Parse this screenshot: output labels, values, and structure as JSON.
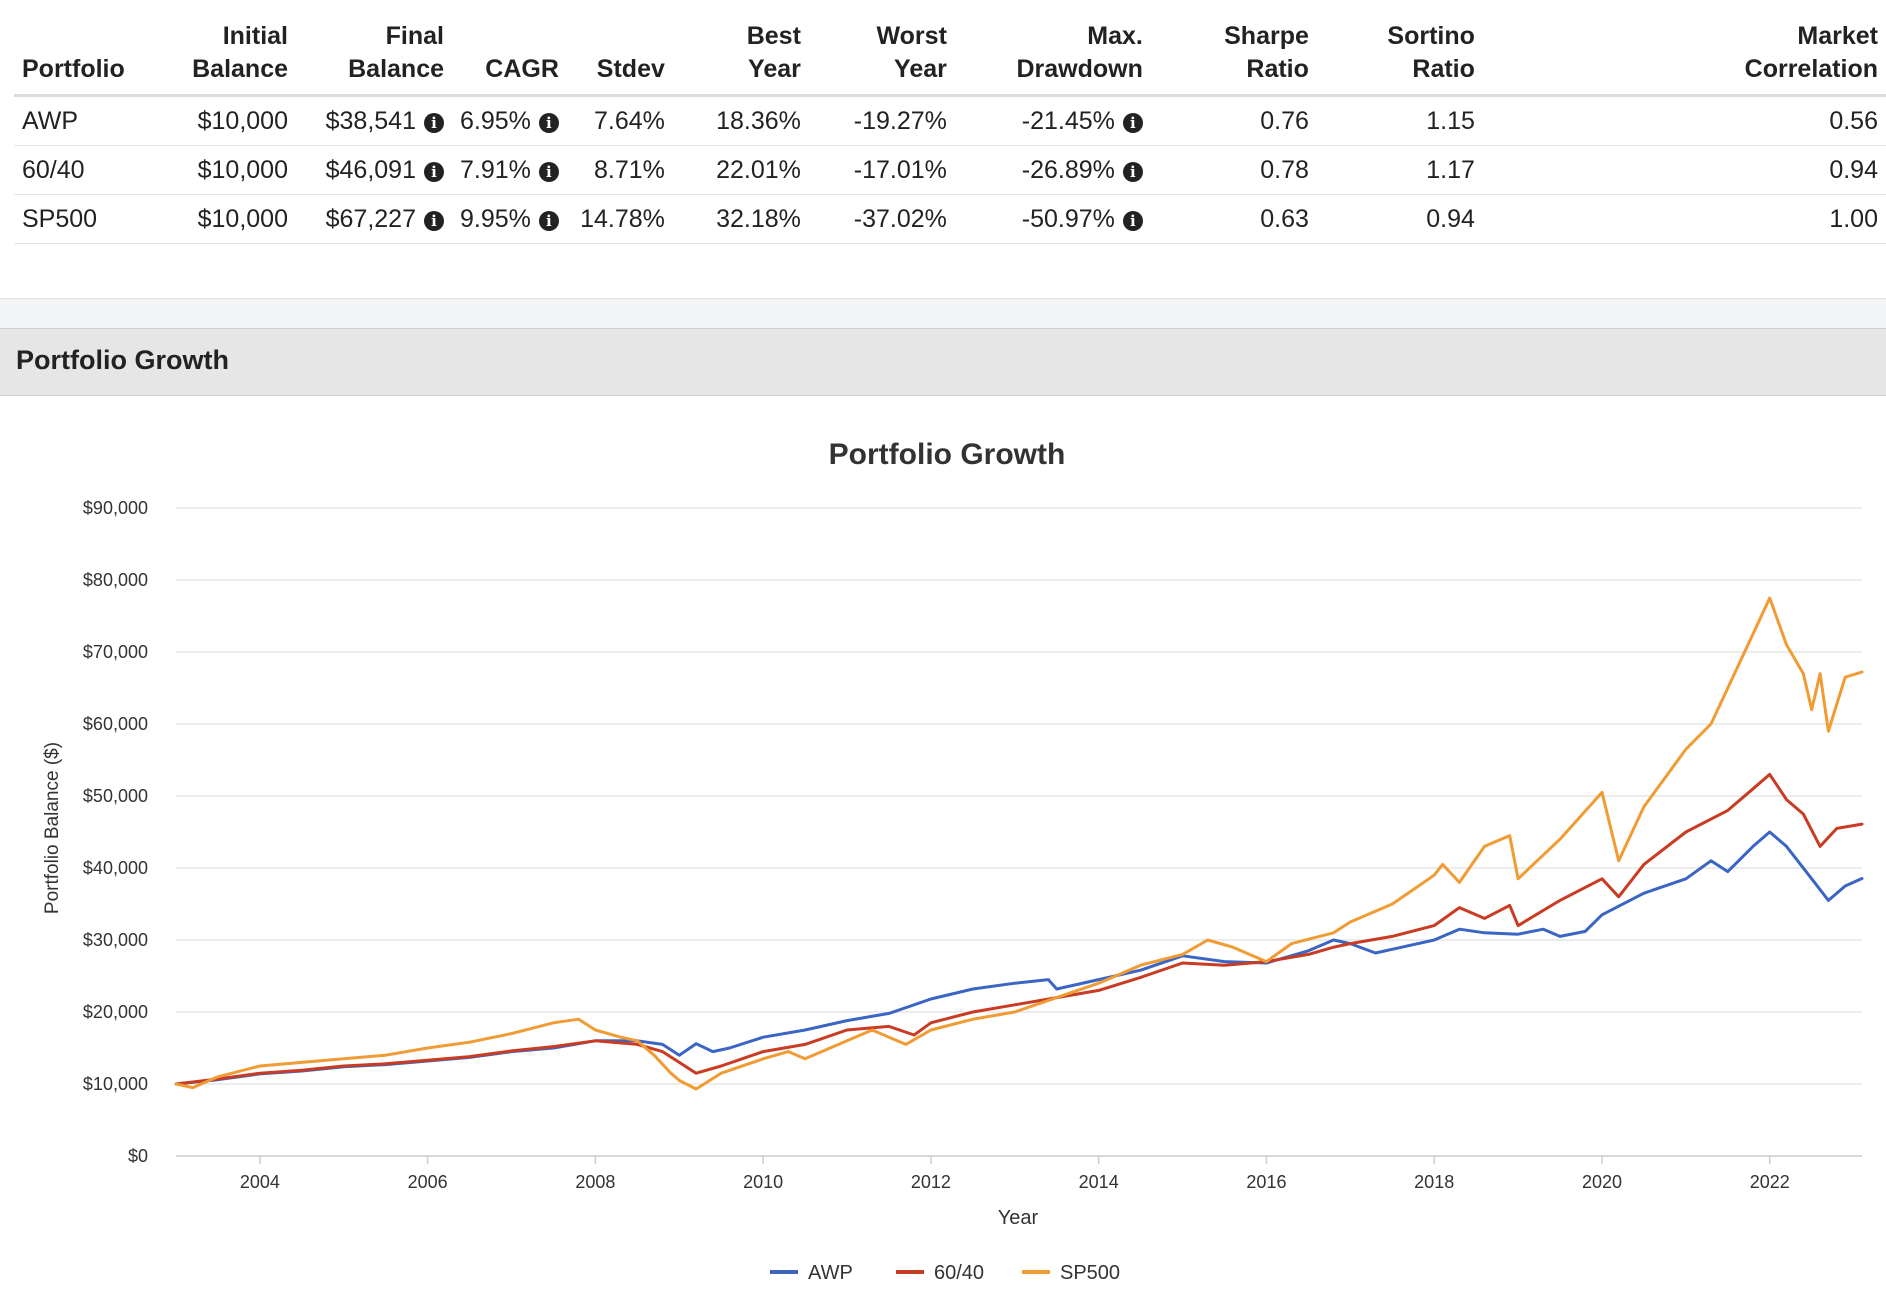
{
  "table": {
    "headers": [
      [
        "Portfolio"
      ],
      [
        "Initial",
        "Balance"
      ],
      [
        "Final",
        "Balance"
      ],
      [
        "CAGR"
      ],
      [
        "Stdev"
      ],
      [
        "Best",
        "Year"
      ],
      [
        "Worst",
        "Year"
      ],
      [
        "Max.",
        "Drawdown"
      ],
      [
        "Sharpe",
        "Ratio"
      ],
      [
        "Sortino",
        "Ratio"
      ],
      [
        "Market",
        "Correlation"
      ]
    ],
    "rows": [
      {
        "portfolio": "AWP",
        "initial": "$10,000",
        "final": "$38,541",
        "cagr": "6.95%",
        "stdev": "7.64%",
        "best": "18.36%",
        "worst": "-19.27%",
        "maxdd": "-21.45%",
        "sharpe": "0.76",
        "sortino": "1.15",
        "corr": "0.56"
      },
      {
        "portfolio": "60/40",
        "initial": "$10,000",
        "final": "$46,091",
        "cagr": "7.91%",
        "stdev": "8.71%",
        "best": "22.01%",
        "worst": "-17.01%",
        "maxdd": "-26.89%",
        "sharpe": "0.78",
        "sortino": "1.17",
        "corr": "0.94"
      },
      {
        "portfolio": "SP500",
        "initial": "$10,000",
        "final": "$67,227",
        "cagr": "9.95%",
        "stdev": "14.78%",
        "best": "32.18%",
        "worst": "-37.02%",
        "maxdd": "-50.97%",
        "sharpe": "0.63",
        "sortino": "0.94",
        "corr": "1.00"
      }
    ],
    "info_glyph": "i"
  },
  "section": {
    "title": "Portfolio Growth"
  },
  "colors": {
    "AWP": "#3b65c4",
    "60/40": "#c93b22",
    "SP500": "#f09b33",
    "grid": "#e6e6e6",
    "axis": "#cccccc"
  },
  "chart_data": {
    "type": "line",
    "title": "Portfolio Growth",
    "xlabel": "Year",
    "ylabel": "Portfolio Balance ($)",
    "xlim": [
      2003.0,
      2023.1
    ],
    "ylim": [
      0,
      90000
    ],
    "yticks": [
      0,
      10000,
      20000,
      30000,
      40000,
      50000,
      60000,
      70000,
      80000,
      90000
    ],
    "ytick_labels": [
      "$0",
      "$10,000",
      "$20,000",
      "$30,000",
      "$40,000",
      "$50,000",
      "$60,000",
      "$70,000",
      "$80,000",
      "$90,000"
    ],
    "xticks": [
      2004,
      2006,
      2008,
      2010,
      2012,
      2014,
      2016,
      2018,
      2020,
      2022
    ],
    "xtick_labels": [
      "2004",
      "2006",
      "2008",
      "2010",
      "2012",
      "2014",
      "2016",
      "2018",
      "2020",
      "2022"
    ],
    "legend_position": "bottom-center",
    "series": [
      {
        "name": "AWP",
        "points": [
          [
            2003.0,
            10000
          ],
          [
            2003.5,
            10600
          ],
          [
            2004.0,
            11400
          ],
          [
            2004.5,
            11800
          ],
          [
            2005.0,
            12400
          ],
          [
            2005.5,
            12700
          ],
          [
            2006.0,
            13200
          ],
          [
            2006.5,
            13700
          ],
          [
            2007.0,
            14500
          ],
          [
            2007.5,
            15000
          ],
          [
            2008.0,
            16000
          ],
          [
            2008.5,
            16000
          ],
          [
            2008.8,
            15500
          ],
          [
            2009.0,
            14000
          ],
          [
            2009.2,
            15600
          ],
          [
            2009.4,
            14500
          ],
          [
            2009.6,
            15000
          ],
          [
            2010.0,
            16500
          ],
          [
            2010.5,
            17500
          ],
          [
            2011.0,
            18800
          ],
          [
            2011.5,
            19800
          ],
          [
            2012.0,
            21800
          ],
          [
            2012.5,
            23200
          ],
          [
            2013.0,
            24000
          ],
          [
            2013.4,
            24500
          ],
          [
            2013.5,
            23200
          ],
          [
            2014.0,
            24500
          ],
          [
            2014.5,
            25800
          ],
          [
            2015.0,
            27800
          ],
          [
            2015.5,
            27000
          ],
          [
            2016.0,
            26800
          ],
          [
            2016.5,
            28500
          ],
          [
            2016.8,
            30000
          ],
          [
            2017.0,
            29500
          ],
          [
            2017.3,
            28200
          ],
          [
            2018.0,
            30000
          ],
          [
            2018.3,
            31500
          ],
          [
            2018.6,
            31000
          ],
          [
            2019.0,
            30800
          ],
          [
            2019.3,
            31500
          ],
          [
            2019.5,
            30500
          ],
          [
            2019.8,
            31200
          ],
          [
            2020.0,
            33500
          ],
          [
            2020.5,
            36500
          ],
          [
            2021.0,
            38500
          ],
          [
            2021.3,
            41000
          ],
          [
            2021.5,
            39500
          ],
          [
            2021.8,
            43000
          ],
          [
            2022.0,
            45000
          ],
          [
            2022.2,
            43000
          ],
          [
            2022.5,
            38500
          ],
          [
            2022.7,
            35500
          ],
          [
            2022.9,
            37500
          ],
          [
            2023.1,
            38541
          ]
        ]
      },
      {
        "name": "60/40",
        "points": [
          [
            2003.0,
            10000
          ],
          [
            2003.5,
            10700
          ],
          [
            2004.0,
            11500
          ],
          [
            2004.5,
            11900
          ],
          [
            2005.0,
            12500
          ],
          [
            2005.5,
            12800
          ],
          [
            2006.0,
            13300
          ],
          [
            2006.5,
            13800
          ],
          [
            2007.0,
            14600
          ],
          [
            2007.5,
            15200
          ],
          [
            2008.0,
            16000
          ],
          [
            2008.5,
            15500
          ],
          [
            2008.8,
            14500
          ],
          [
            2009.0,
            13000
          ],
          [
            2009.2,
            11500
          ],
          [
            2009.5,
            12500
          ],
          [
            2010.0,
            14500
          ],
          [
            2010.5,
            15500
          ],
          [
            2011.0,
            17500
          ],
          [
            2011.5,
            18000
          ],
          [
            2011.8,
            16800
          ],
          [
            2012.0,
            18500
          ],
          [
            2012.5,
            20000
          ],
          [
            2013.0,
            21000
          ],
          [
            2013.5,
            22000
          ],
          [
            2014.0,
            23000
          ],
          [
            2014.5,
            24800
          ],
          [
            2015.0,
            26800
          ],
          [
            2015.5,
            26500
          ],
          [
            2016.0,
            27000
          ],
          [
            2016.5,
            28000
          ],
          [
            2016.8,
            29000
          ],
          [
            2017.0,
            29500
          ],
          [
            2017.5,
            30500
          ],
          [
            2018.0,
            32000
          ],
          [
            2018.3,
            34500
          ],
          [
            2018.6,
            33000
          ],
          [
            2018.9,
            34800
          ],
          [
            2019.0,
            32000
          ],
          [
            2019.5,
            35500
          ],
          [
            2020.0,
            38500
          ],
          [
            2020.2,
            36000
          ],
          [
            2020.5,
            40500
          ],
          [
            2021.0,
            45000
          ],
          [
            2021.5,
            48000
          ],
          [
            2021.8,
            51000
          ],
          [
            2022.0,
            53000
          ],
          [
            2022.2,
            49500
          ],
          [
            2022.4,
            47500
          ],
          [
            2022.6,
            43000
          ],
          [
            2022.8,
            45500
          ],
          [
            2023.1,
            46091
          ]
        ]
      },
      {
        "name": "SP500",
        "points": [
          [
            2003.0,
            10000
          ],
          [
            2003.2,
            9500
          ],
          [
            2003.5,
            11000
          ],
          [
            2004.0,
            12500
          ],
          [
            2004.5,
            13000
          ],
          [
            2005.0,
            13500
          ],
          [
            2005.5,
            14000
          ],
          [
            2006.0,
            15000
          ],
          [
            2006.5,
            15800
          ],
          [
            2007.0,
            17000
          ],
          [
            2007.5,
            18500
          ],
          [
            2007.8,
            19000
          ],
          [
            2008.0,
            17500
          ],
          [
            2008.3,
            16500
          ],
          [
            2008.5,
            16000
          ],
          [
            2008.7,
            14000
          ],
          [
            2008.9,
            11500
          ],
          [
            2009.0,
            10500
          ],
          [
            2009.2,
            9300
          ],
          [
            2009.5,
            11500
          ],
          [
            2010.0,
            13500
          ],
          [
            2010.3,
            14500
          ],
          [
            2010.5,
            13500
          ],
          [
            2011.0,
            16000
          ],
          [
            2011.3,
            17500
          ],
          [
            2011.7,
            15500
          ],
          [
            2012.0,
            17500
          ],
          [
            2012.5,
            19000
          ],
          [
            2013.0,
            20000
          ],
          [
            2013.5,
            22000
          ],
          [
            2014.0,
            24000
          ],
          [
            2014.5,
            26500
          ],
          [
            2015.0,
            28000
          ],
          [
            2015.3,
            30000
          ],
          [
            2015.6,
            29000
          ],
          [
            2016.0,
            27000
          ],
          [
            2016.3,
            29500
          ],
          [
            2016.8,
            31000
          ],
          [
            2017.0,
            32500
          ],
          [
            2017.5,
            35000
          ],
          [
            2018.0,
            39000
          ],
          [
            2018.1,
            40500
          ],
          [
            2018.3,
            38000
          ],
          [
            2018.6,
            43000
          ],
          [
            2018.9,
            44500
          ],
          [
            2019.0,
            38500
          ],
          [
            2019.5,
            44000
          ],
          [
            2020.0,
            50500
          ],
          [
            2020.2,
            41000
          ],
          [
            2020.5,
            48500
          ],
          [
            2021.0,
            56500
          ],
          [
            2021.3,
            60000
          ],
          [
            2021.5,
            65000
          ],
          [
            2021.8,
            72500
          ],
          [
            2022.0,
            77500
          ],
          [
            2022.2,
            71000
          ],
          [
            2022.4,
            67000
          ],
          [
            2022.5,
            62000
          ],
          [
            2022.6,
            67000
          ],
          [
            2022.7,
            59000
          ],
          [
            2022.9,
            66500
          ],
          [
            2023.1,
            67227
          ]
        ]
      }
    ]
  }
}
